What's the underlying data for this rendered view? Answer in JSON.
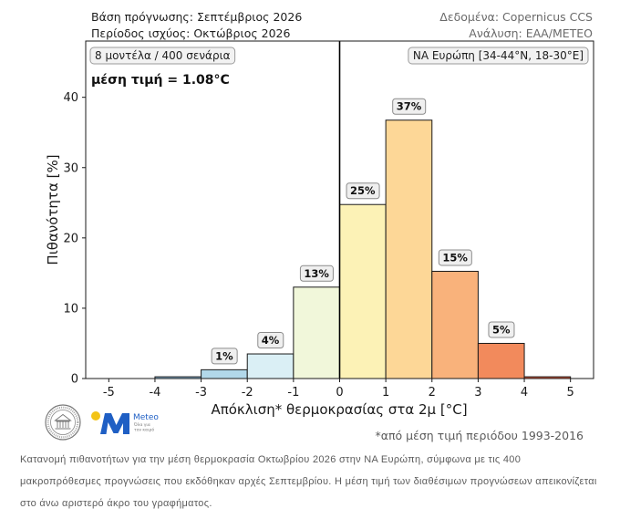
{
  "header": {
    "forecast_base": "Βάση πρόγνωσης: Σεπτέμβριος 2026",
    "valid_period": "Περίοδος ισχύος: Οκτώβριος 2026",
    "data_source": "Δεδομένα: Copernicus CCS",
    "analysis": "Ανάλυση: ΕΑΑ/METEO"
  },
  "annotations": {
    "ensemble": "8 μοντέλα / 400 σενάρια",
    "mean": "μέση τιμή = 1.08°C",
    "region": "ΝΑ Ευρώπη [34-44°N, 18-30°E]"
  },
  "footnote": "*από μέση τιμή περιόδου 1993-2016",
  "logos": {
    "seal_icon": "observatory-seal-icon",
    "meteo_name": "Meteo",
    "meteo_tagline_line1": "Όλα για",
    "meteo_tagline_line2": "τον καιρό",
    "meteo_color": "#1f5fc4",
    "meteo_sun_color": "#f3c316"
  },
  "caption": "Κατανομή πιθανοτήτων για την μέση θερμοκρασία Οκτωβρίου 2026 στην ΝΑ Ευρώπη, σύμφωνα με τις 400 μακροπρόθεσμες προγνώσεις που εκδόθηκαν αρχές Σεπτεμβρίου. Η μέση τιμή των διαθέσιμων προγνώσεων απεικονίζεται στο άνω αριστερό άκρο του γραφήματος.",
  "chart_data": {
    "type": "bar",
    "bins": [
      [
        -4,
        -3
      ],
      [
        -3,
        -2
      ],
      [
        -2,
        -1
      ],
      [
        -1,
        0
      ],
      [
        0,
        1
      ],
      [
        1,
        2
      ],
      [
        2,
        3
      ],
      [
        3,
        4
      ],
      [
        4,
        5
      ]
    ],
    "values": [
      0.25,
      1.25,
      3.5,
      13.0,
      24.75,
      36.75,
      15.25,
      5.0,
      0.25
    ],
    "value_labels": [
      "",
      "1%",
      "4%",
      "13%",
      "25%",
      "37%",
      "15%",
      "5%",
      ""
    ],
    "colors": [
      "#8bb7d6",
      "#b2d8ea",
      "#daeff5",
      "#f1f7da",
      "#fcf2b6",
      "#fdd797",
      "#f9b27b",
      "#f28a5c",
      "#d9573a"
    ],
    "xlabel": "Απόκλιση* θερμοκρασίας στα 2μ [°C]",
    "ylabel": "Πιθανότητα [%]",
    "xlim": [
      -5.5,
      5.5
    ],
    "ylim": [
      0,
      48
    ],
    "xticks": [
      -5,
      -4,
      -3,
      -2,
      -1,
      0,
      1,
      2,
      3,
      4,
      5
    ],
    "yticks": [
      0,
      10,
      20,
      30,
      40
    ],
    "reference_line_x": 0,
    "grid": false
  }
}
